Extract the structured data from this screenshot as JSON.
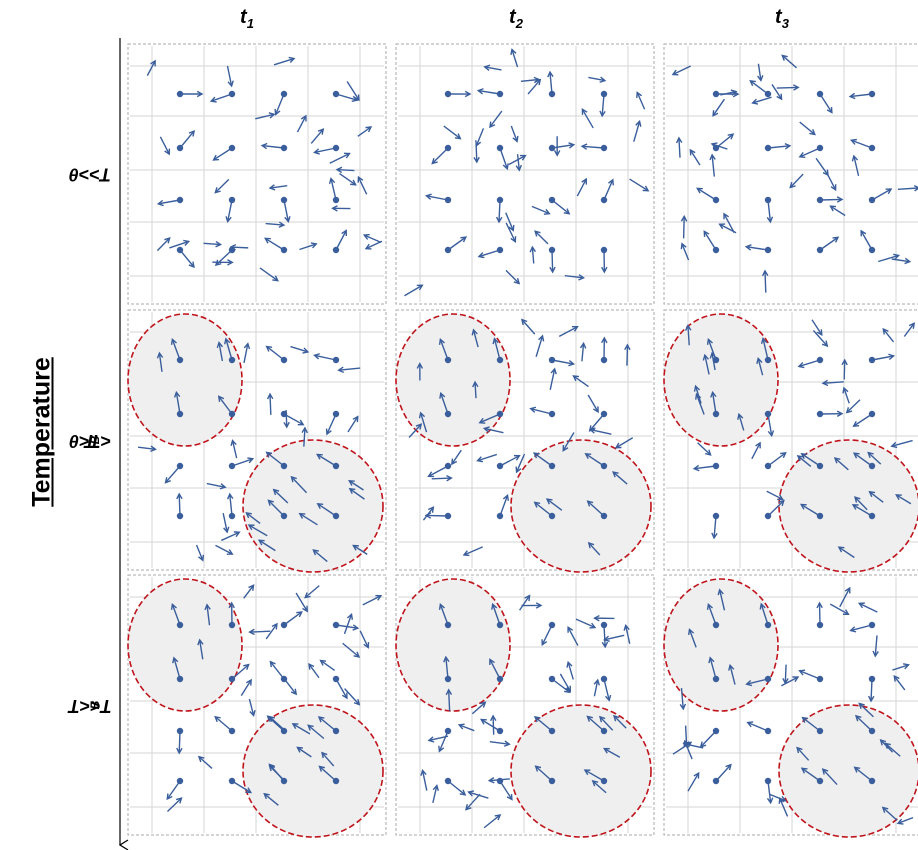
{
  "columns": [
    {
      "base": "t",
      "sub": "1"
    },
    {
      "base": "t",
      "sub": "2"
    },
    {
      "base": "t",
      "sub": "3"
    }
  ],
  "axis_title": "Temperature",
  "rows": [
    {
      "pre": "T>>θ",
      "sub": "",
      "post": ""
    },
    {
      "pre": "T",
      "sub": "B",
      "post": "<T<θ"
    },
    {
      "pre": "T<<T",
      "sub": "B",
      "post": ""
    }
  ],
  "colors": {
    "arrow": "#3a5e9c",
    "domain_outline": "#c0141c",
    "domain_fill": "#efefef",
    "grid": "#d4d4d4",
    "panel_border": "#a8a8a8"
  }
}
